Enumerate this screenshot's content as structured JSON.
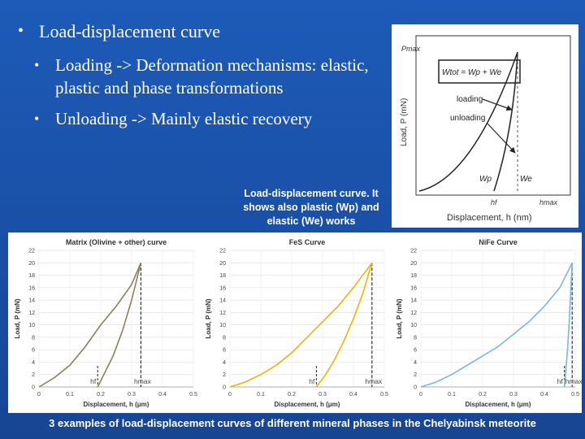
{
  "bullets": {
    "main": "Load-displacement  curve",
    "sub1": "Loading -> Deformation mechanisms: elastic, plastic and phase transformations",
    "sub2": "Unloading -> Mainly elastic recovery"
  },
  "caption_top": "Load-displacement curve. It shows also plastic (Wp) and elastic (We) works",
  "caption_bottom": "3 examples  of load-displacement curves of different mineral phases in the Chelyabinsk meteorite",
  "diagram": {
    "ylabel": "Load, P (mN)",
    "xlabel": "Displacement, h (nm)",
    "pmax": "Pmax",
    "wtot": "Wtot = Wp + We",
    "loading": "loading",
    "unloading": "unloading",
    "wp": "Wp",
    "we": "We",
    "hf": "hf",
    "hmax": "hmax"
  },
  "chart_data": [
    {
      "type": "line",
      "title": "Matrix (Olivine + other) curve",
      "xlabel": "Displacement, h (μm)",
      "ylabel": "Load, P (mN)",
      "xlim": [
        0,
        0.5
      ],
      "ylim": [
        0,
        22
      ],
      "xticks": [
        "0",
        "0.1",
        "0.2",
        "0.3",
        "0.4",
        "0.5"
      ],
      "yticks": [
        "0",
        "2",
        "4",
        "6",
        "8",
        "10",
        "12",
        "14",
        "16",
        "18",
        "20",
        "22"
      ],
      "annotations": [
        "hf",
        "hmax"
      ],
      "color": "#8a8060",
      "series": [
        {
          "x": [
            0,
            0.05,
            0.1,
            0.15,
            0.2,
            0.25,
            0.3,
            0.33
          ],
          "y": [
            0,
            1.5,
            3.5,
            6.5,
            10,
            13,
            16.5,
            20
          ]
        },
        {
          "x": [
            0.33,
            0.3,
            0.27,
            0.24,
            0.21,
            0.19
          ],
          "y": [
            20,
            14,
            9,
            5,
            2,
            0
          ]
        }
      ]
    },
    {
      "type": "line",
      "title": "FeS Curve",
      "xlabel": "Displacement, h (μm)",
      "ylabel": "Load, P (mN)",
      "xlim": [
        0,
        0.5
      ],
      "ylim": [
        0,
        22
      ],
      "xticks": [
        "0",
        "0.1",
        "0.2",
        "0.3",
        "0.4",
        "0.5"
      ],
      "yticks": [
        "0",
        "2",
        "4",
        "6",
        "8",
        "10",
        "12",
        "14",
        "16",
        "18",
        "20",
        "22"
      ],
      "annotations": [
        "hf",
        "hmax"
      ],
      "color": "#f0b400",
      "series": [
        {
          "x": [
            0,
            0.05,
            0.1,
            0.15,
            0.2,
            0.25,
            0.3,
            0.35,
            0.4,
            0.46
          ],
          "y": [
            0,
            0.8,
            2,
            3.5,
            5.5,
            8,
            10.5,
            13,
            16,
            20
          ]
        },
        {
          "x": [
            0.46,
            0.43,
            0.4,
            0.37,
            0.34,
            0.31,
            0.28
          ],
          "y": [
            20,
            15,
            11,
            7.5,
            4.5,
            2,
            0
          ]
        }
      ]
    },
    {
      "type": "line",
      "title": "NiFe Curve",
      "xlabel": "Displacement, h (μm)",
      "ylabel": "Load, P (mN)",
      "xlim": [
        0,
        0.5
      ],
      "ylim": [
        0,
        22
      ],
      "xticks": [
        "0",
        "0.1",
        "0.2",
        "0.3",
        "0.4",
        "0.5"
      ],
      "yticks": [
        "0",
        "2",
        "4",
        "6",
        "8",
        "10",
        "12",
        "14",
        "16",
        "18",
        "20",
        "22"
      ],
      "annotations": [
        "hf",
        "hmax"
      ],
      "color": "#7ab8d8",
      "series": [
        {
          "x": [
            0,
            0.05,
            0.1,
            0.15,
            0.2,
            0.25,
            0.3,
            0.35,
            0.4,
            0.45,
            0.49
          ],
          "y": [
            0,
            0.8,
            2,
            3.5,
            5,
            6.5,
            8.5,
            10.5,
            13,
            16,
            20
          ]
        },
        {
          "x": [
            0.49,
            0.485,
            0.48,
            0.475,
            0.47,
            0.465
          ],
          "y": [
            20,
            15,
            10,
            6,
            3,
            0
          ]
        }
      ]
    }
  ]
}
